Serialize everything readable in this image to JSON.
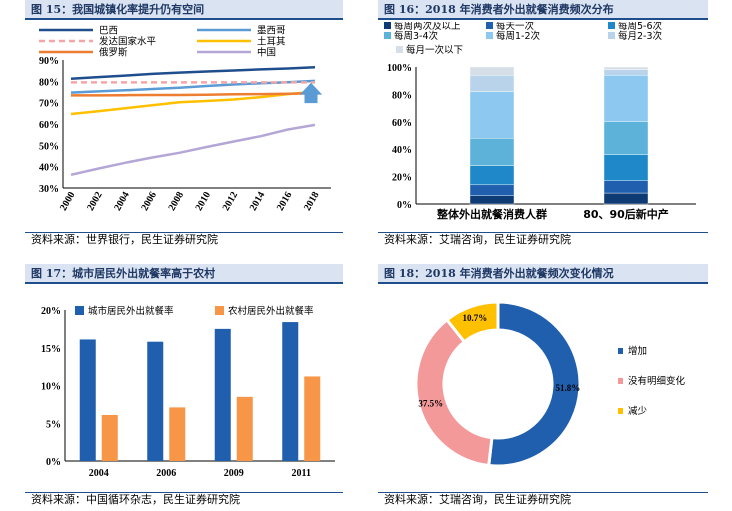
{
  "panels": {
    "p15": {
      "title": "图 15：我国城镇化率提升仍有空间",
      "source": "资料来源：世界银行，民生证券研究院"
    },
    "p16": {
      "title": "图 16：2018 年消费者外出就餐消费频次分布",
      "source": "资料来源：艾瑞咨询，民生证券研究院"
    },
    "p17": {
      "title": "图 17：城市居民外出就餐率高于农村",
      "source": "资料来源：中国循环杂志，民生证券研究院"
    },
    "p18": {
      "title": "图 18：2018 年消费者外出就餐频次变化情况",
      "source": "资料来源：艾瑞咨询，民生证券研究院"
    }
  },
  "chart_data": [
    {
      "type": "line",
      "x": [
        2000,
        2002,
        2004,
        2006,
        2008,
        2010,
        2012,
        2014,
        2016,
        2018
      ],
      "ylim": [
        30,
        90
      ],
      "yticks": [
        "30%",
        "40%",
        "50%",
        "60%",
        "70%",
        "80%",
        "90%"
      ],
      "xticks": [
        "2000",
        "2002",
        "2004",
        "2006",
        "2008",
        "2010",
        "2012",
        "2014",
        "2016",
        "2018"
      ],
      "series": [
        {
          "name": "巴西",
          "color": "#1f4e8c",
          "dash": "",
          "values": [
            81.2,
            82.0,
            82.7,
            83.5,
            84.1,
            84.6,
            85.1,
            85.6,
            86.0,
            86.6
          ]
        },
        {
          "name": "墨西哥",
          "color": "#5b9bd5",
          "dash": "",
          "values": [
            74.7,
            75.3,
            75.8,
            76.4,
            77.0,
            77.8,
            78.5,
            79.1,
            79.6,
            80.2
          ]
        },
        {
          "name": "发达国家水平",
          "color": "#f4a6a6",
          "dash": "6,4",
          "values": [
            79.5,
            79.5,
            79.5,
            79.5,
            79.5,
            79.5,
            79.5,
            79.5,
            79.5,
            79.5
          ]
        },
        {
          "name": "土耳其",
          "color": "#ffc000",
          "dash": "",
          "values": [
            64.7,
            66.0,
            67.4,
            68.8,
            70.2,
            70.8,
            71.5,
            72.6,
            74.0,
            75.1
          ]
        },
        {
          "name": "俄罗斯",
          "color": "#ed7d31",
          "dash": "",
          "values": [
            73.4,
            73.4,
            73.5,
            73.6,
            73.6,
            73.7,
            73.9,
            74.0,
            74.2,
            74.4
          ]
        },
        {
          "name": "中国",
          "color": "#b4a7d6",
          "dash": "",
          "values": [
            36.2,
            39.1,
            41.8,
            44.3,
            46.5,
            49.2,
            51.8,
            54.3,
            57.4,
            59.6
          ]
        }
      ]
    },
    {
      "type": "bar",
      "stacked": true,
      "categories": [
        "整体外出就餐消费人群",
        "80、90后新中产"
      ],
      "yticks": [
        "0%",
        "20%",
        "40%",
        "60%",
        "80%",
        "100%"
      ],
      "series": [
        {
          "name": "每周两次及以上",
          "color": "#0f3b75",
          "values": [
            6,
            8
          ]
        },
        {
          "name": "每天一次",
          "color": "#1f5fae",
          "values": [
            8,
            9
          ]
        },
        {
          "name": "每周5-6次",
          "color": "#1e88c9",
          "values": [
            14,
            19
          ]
        },
        {
          "name": "每周3-4次",
          "color": "#5cb2d8",
          "values": [
            20,
            24
          ]
        },
        {
          "name": "每周1-2次",
          "color": "#8cc8f0",
          "values": [
            34,
            34
          ]
        },
        {
          "name": "每月2-3次",
          "color": "#b9d3ea",
          "values": [
            12,
            4
          ]
        },
        {
          "name": "每月一次以下",
          "color": "#d6dfe8",
          "values": [
            6,
            2
          ]
        }
      ]
    },
    {
      "type": "bar",
      "categories": [
        "2004",
        "2006",
        "2009",
        "2011"
      ],
      "ylim": [
        0,
        20
      ],
      "yticks": [
        "0%",
        "5%",
        "10%",
        "15%",
        "20%"
      ],
      "series": [
        {
          "name": "城市居民外出就餐率",
          "color": "#1f5fae",
          "values": [
            16.1,
            15.8,
            17.5,
            18.4
          ]
        },
        {
          "name": "农村居民外出就餐率",
          "color": "#f79646",
          "values": [
            6.1,
            7.1,
            8.5,
            11.2
          ]
        }
      ]
    },
    {
      "type": "pie",
      "donut": true,
      "slices": [
        {
          "name": "增加",
          "value": 51.8,
          "label": "51.8%",
          "color": "#1f5fae"
        },
        {
          "name": "没有明细变化",
          "value": 37.5,
          "label": "37.5%",
          "color": "#f4999a"
        },
        {
          "name": "减少",
          "value": 10.7,
          "label": "10.7%",
          "color": "#ffc000"
        }
      ]
    }
  ]
}
